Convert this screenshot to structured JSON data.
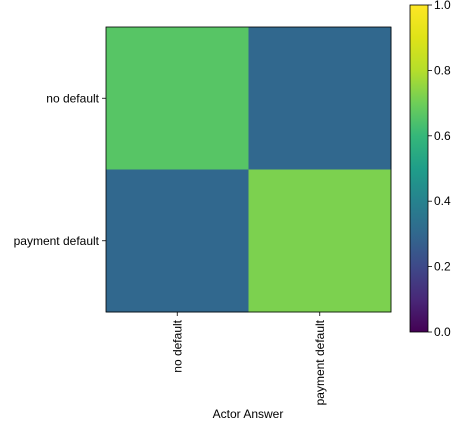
{
  "chart_data": {
    "type": "heatmap",
    "title": "",
    "xlabel": "Actor Answer",
    "ylabel": "",
    "x_categories": [
      "no default",
      "payment default"
    ],
    "y_categories": [
      "no default",
      "payment default"
    ],
    "values": [
      [
        0.66,
        0.3
      ],
      [
        0.3,
        0.72
      ]
    ],
    "colormap": "viridis",
    "colorbar": {
      "range": [
        0.0,
        1.0
      ],
      "ticks": [
        0.0,
        0.2,
        0.4,
        0.6,
        0.8,
        1.0
      ],
      "tick_labels": [
        "0.0",
        "0.2",
        "0.4",
        "0.6",
        "0.8",
        "1.0"
      ],
      "placement": "right"
    },
    "grid": false
  }
}
